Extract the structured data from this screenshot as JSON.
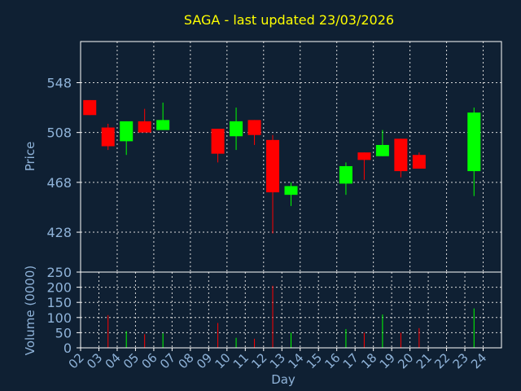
{
  "title": "SAGA - last updated 23/03/2026",
  "colors": {
    "background": "#0f2033",
    "title": "#ffff00",
    "axis_text": "#8fb3d9",
    "frame": "#ffffff",
    "grid": "#d8d8d8",
    "up": "#00ff00",
    "down": "#ff0000"
  },
  "chart_data": [
    {
      "type": "candlestick",
      "ylabel": "Price",
      "ylim": [
        396,
        581
      ],
      "yticks": [
        428,
        468,
        508,
        548
      ],
      "x_ticks": [
        "02",
        "03",
        "04",
        "05",
        "06",
        "07",
        "08",
        "09",
        "10",
        "11",
        "12",
        "13",
        "14",
        "15",
        "16",
        "17",
        "18",
        "19",
        "20",
        "21",
        "22",
        "23",
        "24"
      ],
      "xlim": [
        2,
        24
      ],
      "grid": true,
      "candles": [
        {
          "day": 2,
          "open": 534,
          "close": 522,
          "high": 534,
          "low": 522
        },
        {
          "day": 3,
          "open": 512,
          "close": 497,
          "high": 515,
          "low": 494
        },
        {
          "day": 4,
          "open": 501,
          "close": 517,
          "high": 517,
          "low": 490
        },
        {
          "day": 5,
          "open": 517,
          "close": 508,
          "high": 527,
          "low": 508
        },
        {
          "day": 6,
          "open": 510,
          "close": 518,
          "high": 532,
          "low": 510
        },
        {
          "day": 9,
          "open": 511,
          "close": 491,
          "high": 511,
          "low": 484
        },
        {
          "day": 10,
          "open": 505,
          "close": 517,
          "high": 528,
          "low": 494
        },
        {
          "day": 11,
          "open": 518,
          "close": 506,
          "high": 518,
          "low": 498
        },
        {
          "day": 12,
          "open": 502,
          "close": 460,
          "high": 506,
          "low": 427
        },
        {
          "day": 13,
          "open": 458,
          "close": 465,
          "high": 468,
          "low": 449
        },
        {
          "day": 16,
          "open": 467,
          "close": 481,
          "high": 484,
          "low": 458
        },
        {
          "day": 17,
          "open": 492,
          "close": 486,
          "high": 492,
          "low": 470
        },
        {
          "day": 18,
          "open": 489,
          "close": 498,
          "high": 510,
          "low": 489
        },
        {
          "day": 19,
          "open": 503,
          "close": 477,
          "high": 503,
          "low": 472
        },
        {
          "day": 20,
          "open": 490,
          "close": 479,
          "high": 492,
          "low": 479
        },
        {
          "day": 23,
          "open": 477,
          "close": 524,
          "high": 528,
          "low": 457
        }
      ]
    },
    {
      "type": "bar",
      "ylabel": "Volume (0000)",
      "ylim": [
        0,
        250
      ],
      "yticks": [
        0,
        50,
        100,
        150,
        200,
        250
      ],
      "xlabel": "Day",
      "grid": true,
      "volumes": [
        {
          "day": 3,
          "value": 108,
          "direction": "down"
        },
        {
          "day": 4,
          "value": 55,
          "direction": "up"
        },
        {
          "day": 5,
          "value": 45,
          "direction": "down"
        },
        {
          "day": 6,
          "value": 48,
          "direction": "up"
        },
        {
          "day": 9,
          "value": 82,
          "direction": "down"
        },
        {
          "day": 10,
          "value": 33,
          "direction": "up"
        },
        {
          "day": 11,
          "value": 30,
          "direction": "down"
        },
        {
          "day": 12,
          "value": 205,
          "direction": "down"
        },
        {
          "day": 13,
          "value": 50,
          "direction": "up"
        },
        {
          "day": 16,
          "value": 62,
          "direction": "up"
        },
        {
          "day": 17,
          "value": 50,
          "direction": "down"
        },
        {
          "day": 18,
          "value": 110,
          "direction": "up"
        },
        {
          "day": 19,
          "value": 50,
          "direction": "down"
        },
        {
          "day": 20,
          "value": 65,
          "direction": "down"
        },
        {
          "day": 23,
          "value": 130,
          "direction": "up"
        }
      ]
    }
  ]
}
